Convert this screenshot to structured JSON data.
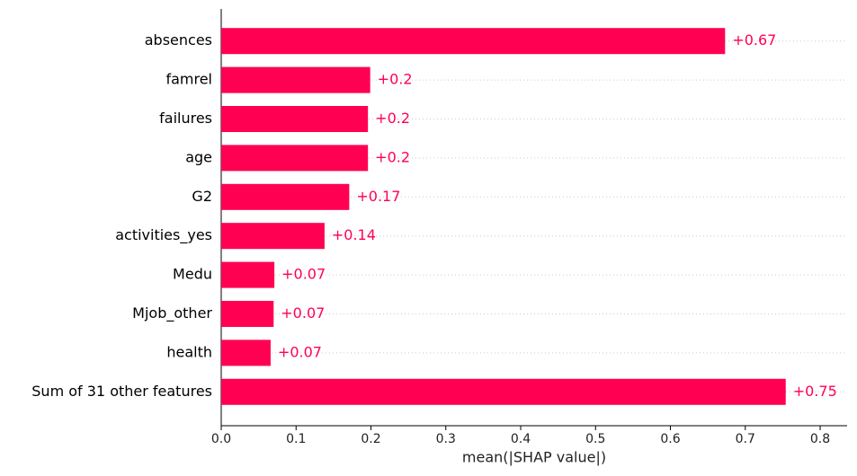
{
  "chart_data": {
    "type": "barh",
    "categories": [
      "absences",
      "famrel",
      "failures",
      "age",
      "G2",
      "activities_yes",
      "Medu",
      "Mjob_other",
      "health",
      "Sum of 31 other features"
    ],
    "values": [
      0.673,
      0.199,
      0.196,
      0.196,
      0.171,
      0.138,
      0.071,
      0.07,
      0.066,
      0.754
    ],
    "value_labels": [
      "+0.67",
      "+0.2",
      "+0.2",
      "+0.2",
      "+0.17",
      "+0.14",
      "+0.07",
      "+0.07",
      "+0.07",
      "+0.75"
    ],
    "color": "#ff0052",
    "xlabel": "mean(|SHAP value|)",
    "xlim": [
      0,
      0.836
    ],
    "xticks": [
      {
        "value": 0,
        "label": "0.0"
      },
      0.1,
      0.2,
      0.3,
      0.4,
      0.5,
      0.6,
      0.7,
      0.8
    ],
    "grid": true
  }
}
